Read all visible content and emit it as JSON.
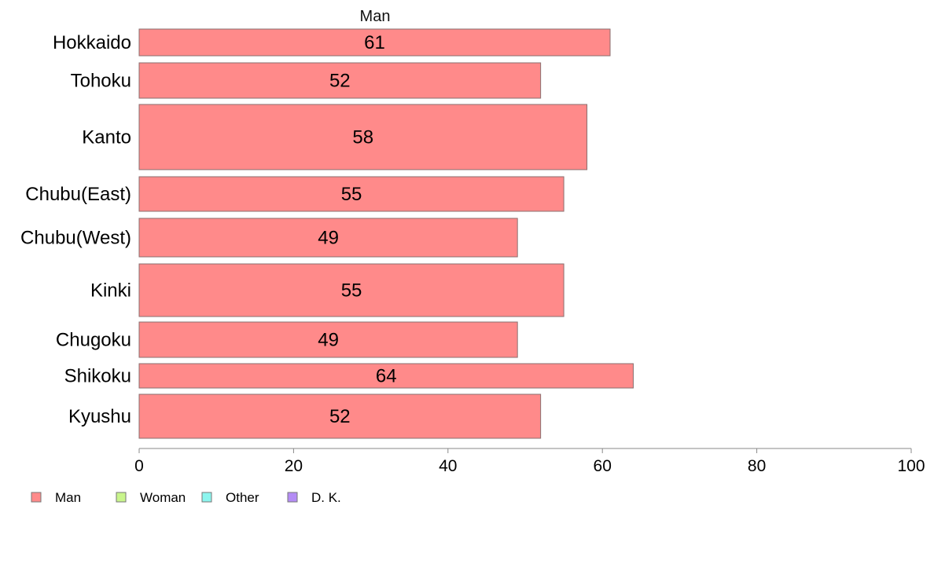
{
  "chart_data": {
    "type": "bar",
    "orientation": "horizontal",
    "series_header": "Man",
    "categories": [
      "Hokkaido",
      "Tohoku",
      "Kanto",
      "Chubu(East)",
      "Chubu(West)",
      "Kinki",
      "Chugoku",
      "Shikoku",
      "Kyushu"
    ],
    "series": [
      {
        "name": "Man",
        "values": [
          61,
          52,
          58,
          55,
          49,
          55,
          49,
          64,
          52
        ],
        "data_labels": [
          "61",
          "52",
          "58",
          "55",
          "49",
          "55",
          "49",
          "64",
          "52"
        ]
      }
    ],
    "xlim": [
      0,
      100
    ],
    "xticks": [
      "0",
      "20",
      "40",
      "60",
      "80",
      "100"
    ],
    "grid": false,
    "legend_position": "bottom-left",
    "legend": [
      {
        "label": "Man",
        "color": "#ff8a8a"
      },
      {
        "label": "Woman",
        "color": "#c9f58c"
      },
      {
        "label": "Other",
        "color": "#8cf5ee"
      },
      {
        "label": "D. K.",
        "color": "#b48cf5"
      }
    ]
  }
}
